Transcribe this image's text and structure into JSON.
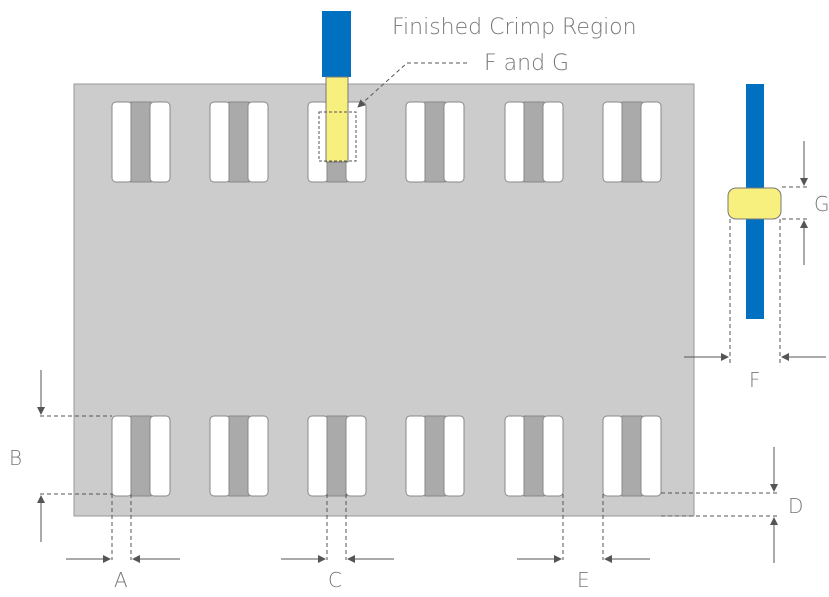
{
  "title": "Finished Crimp Region",
  "subtitle": "F and G",
  "labels": {
    "a": "A",
    "b": "B",
    "c": "C",
    "d": "D",
    "e": "E",
    "f": "F",
    "g": "G"
  },
  "colors": {
    "panel": "#cccccc",
    "slot": "#ffffff",
    "terminal": "#aaaaaa",
    "wire": "#0070c0",
    "crimp": "#f7f07f",
    "dim_line": "#555555",
    "text": "#777777"
  }
}
